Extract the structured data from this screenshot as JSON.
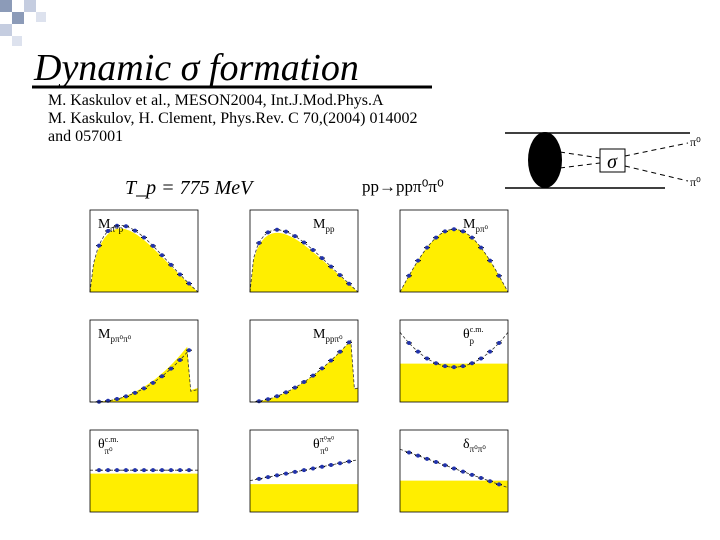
{
  "header": {
    "title": "Dynamic σ formation"
  },
  "references": [
    "M. Kaskulov et al., MESON2004, Int.J.Mod.Phys.A",
    "M. Kaskulov, H. Clement, Phys.Rev. C 70,(2004) 014002",
    "and 057001"
  ],
  "energy": "T_p = 775 MeV",
  "reaction": "pp→ppπ⁰π⁰",
  "diagram": {
    "sigma": "σ",
    "out_top": "π⁰",
    "out_bottom": "π⁰"
  },
  "panels": [
    {
      "main": "M",
      "sub": "π⁰p"
    },
    {
      "main": "M",
      "sub": "pp"
    },
    {
      "main": "M",
      "sub": "pπ⁰"
    },
    {
      "main": "M",
      "sub": "pπ⁰π⁰"
    },
    {
      "main": "M",
      "sub": "ppπ⁰"
    },
    {
      "main": "θ",
      "sub": "p",
      "sup": "c.m."
    },
    {
      "main": "θ",
      "sub": "π⁰",
      "sup": "c.m."
    },
    {
      "main": "θ",
      "sub": "π⁰",
      "sup": "π⁰π⁰"
    },
    {
      "main": "δ",
      "sub": "π⁰π⁰"
    }
  ]
}
